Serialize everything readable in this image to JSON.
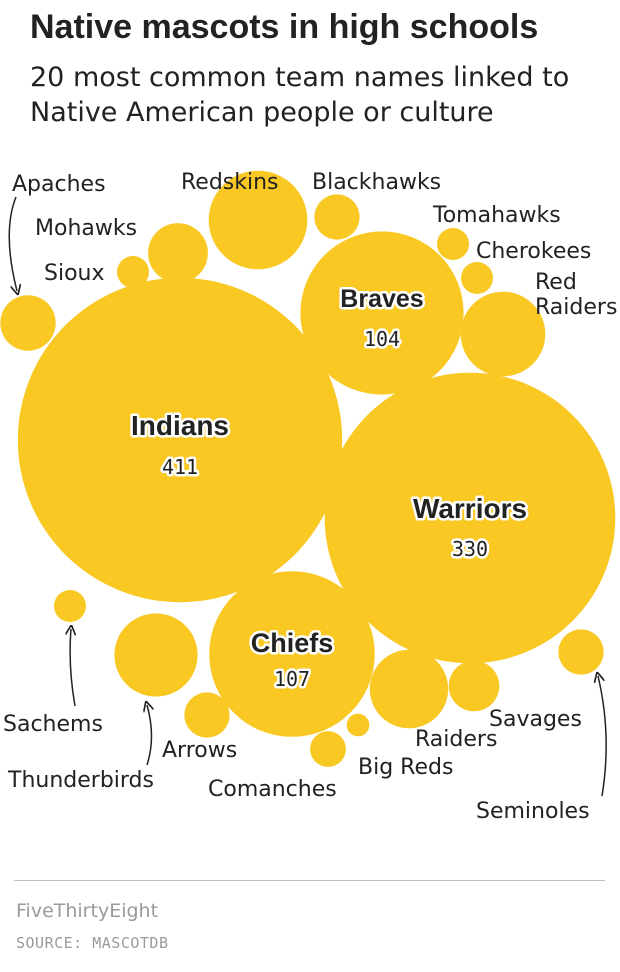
{
  "title": "Native mascots in high schools",
  "subtitle": "20 most common team names linked to Native American people or culture",
  "footer": {
    "brand": "FiveThirtyEight",
    "source": "SOURCE: MASCOTDB"
  },
  "colors": {
    "bubble": "#f9c823",
    "text": "#222222",
    "outline": "#ffffff",
    "muted": "#9a9a9a"
  },
  "chart_data": {
    "type": "bubble",
    "title": "Native mascots in high schools",
    "subtitle": "20 most common team names linked to Native American people or culture",
    "value_labels_shown_for": [
      "Indians",
      "Warriors",
      "Chiefs",
      "Braves"
    ],
    "series": [
      {
        "name": "Indians",
        "value": 411
      },
      {
        "name": "Warriors",
        "value": 330
      },
      {
        "name": "Chiefs",
        "value": 107
      },
      {
        "name": "Braves",
        "value": 104
      },
      {
        "name": "Redskins",
        "value": 38
      },
      {
        "name": "Red Raiders",
        "value": 28
      },
      {
        "name": "Thunderbirds",
        "value": 27
      },
      {
        "name": "Big Reds",
        "value": 24
      },
      {
        "name": "Mohawks",
        "value": 14
      },
      {
        "name": "Apaches",
        "value": 12
      },
      {
        "name": "Savages",
        "value": 10
      },
      {
        "name": "Blackhawks",
        "value": 8
      },
      {
        "name": "Arrows",
        "value": 8
      },
      {
        "name": "Seminoles",
        "value": 8
      },
      {
        "name": "Comanches",
        "value": 5
      },
      {
        "name": "Sachems",
        "value": 4
      },
      {
        "name": "Cherokees",
        "value": 4
      },
      {
        "name": "Tomahawks",
        "value": 4
      },
      {
        "name": "Sioux",
        "value": 4
      },
      {
        "name": "Raiders",
        "value": 2
      }
    ]
  }
}
